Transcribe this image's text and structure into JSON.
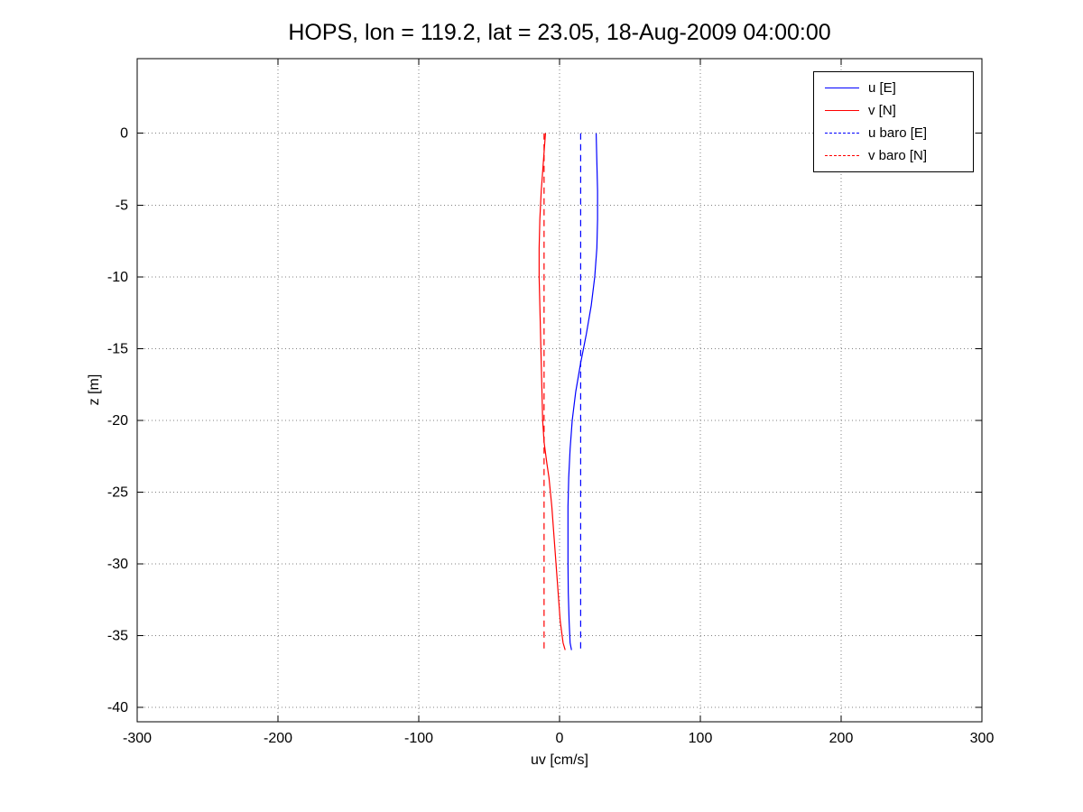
{
  "figure": {
    "title": "HOPS, lon = 119.2, lat = 23.05, 18-Aug-2009 04:00:00"
  },
  "chart_data": {
    "type": "line",
    "title": "HOPS, lon = 119.2, lat = 23.05, 18-Aug-2009 04:00:00",
    "xlabel": "uv [cm/s]",
    "ylabel": "z [m]",
    "xlim": [
      -300,
      300
    ],
    "ylim": [
      -41,
      5.2
    ],
    "xticks": [
      -300,
      -200,
      -100,
      0,
      100,
      200,
      300
    ],
    "yticks": [
      0,
      -5,
      -10,
      -15,
      -20,
      -25,
      -30,
      -35,
      -40
    ],
    "grid": true,
    "grid_style": "dotted",
    "legend_position": "top-right",
    "axis_color": "#000000",
    "series": [
      {
        "name": "u [E]",
        "color": "#0000ff",
        "style": "solid",
        "points": [
          [
            26,
            0
          ],
          [
            26.5,
            -2
          ],
          [
            27,
            -4
          ],
          [
            27,
            -6
          ],
          [
            26.5,
            -8
          ],
          [
            25,
            -10
          ],
          [
            22.5,
            -12
          ],
          [
            19,
            -14
          ],
          [
            15,
            -16
          ],
          [
            11.5,
            -18
          ],
          [
            9,
            -20
          ],
          [
            7.5,
            -22
          ],
          [
            6.5,
            -24
          ],
          [
            6,
            -26
          ],
          [
            6,
            -28
          ],
          [
            6,
            -30
          ],
          [
            6.2,
            -32
          ],
          [
            6.8,
            -34
          ],
          [
            7.5,
            -35.5
          ],
          [
            8.5,
            -36
          ]
        ]
      },
      {
        "name": "v [N]",
        "color": "#ff0000",
        "style": "solid",
        "points": [
          [
            -10,
            0
          ],
          [
            -11.5,
            -2
          ],
          [
            -13,
            -4
          ],
          [
            -14,
            -6
          ],
          [
            -14.5,
            -8
          ],
          [
            -14.5,
            -10
          ],
          [
            -14,
            -12
          ],
          [
            -13.5,
            -14
          ],
          [
            -13,
            -16
          ],
          [
            -12.5,
            -18
          ],
          [
            -12,
            -20
          ],
          [
            -11,
            -21.5
          ],
          [
            -9,
            -23
          ],
          [
            -7.5,
            -24
          ],
          [
            -5.5,
            -26
          ],
          [
            -4,
            -28
          ],
          [
            -2.5,
            -30
          ],
          [
            -1,
            -32
          ],
          [
            0.5,
            -34
          ],
          [
            2.5,
            -35.5
          ],
          [
            4,
            -36
          ]
        ]
      },
      {
        "name": "u baro [E]",
        "color": "#0000ff",
        "style": "dashed",
        "points": [
          [
            15,
            0
          ],
          [
            15,
            -36
          ]
        ]
      },
      {
        "name": "v baro [N]",
        "color": "#ff0000",
        "style": "dashed",
        "points": [
          [
            -11,
            0
          ],
          [
            -11,
            -36
          ]
        ]
      }
    ]
  }
}
